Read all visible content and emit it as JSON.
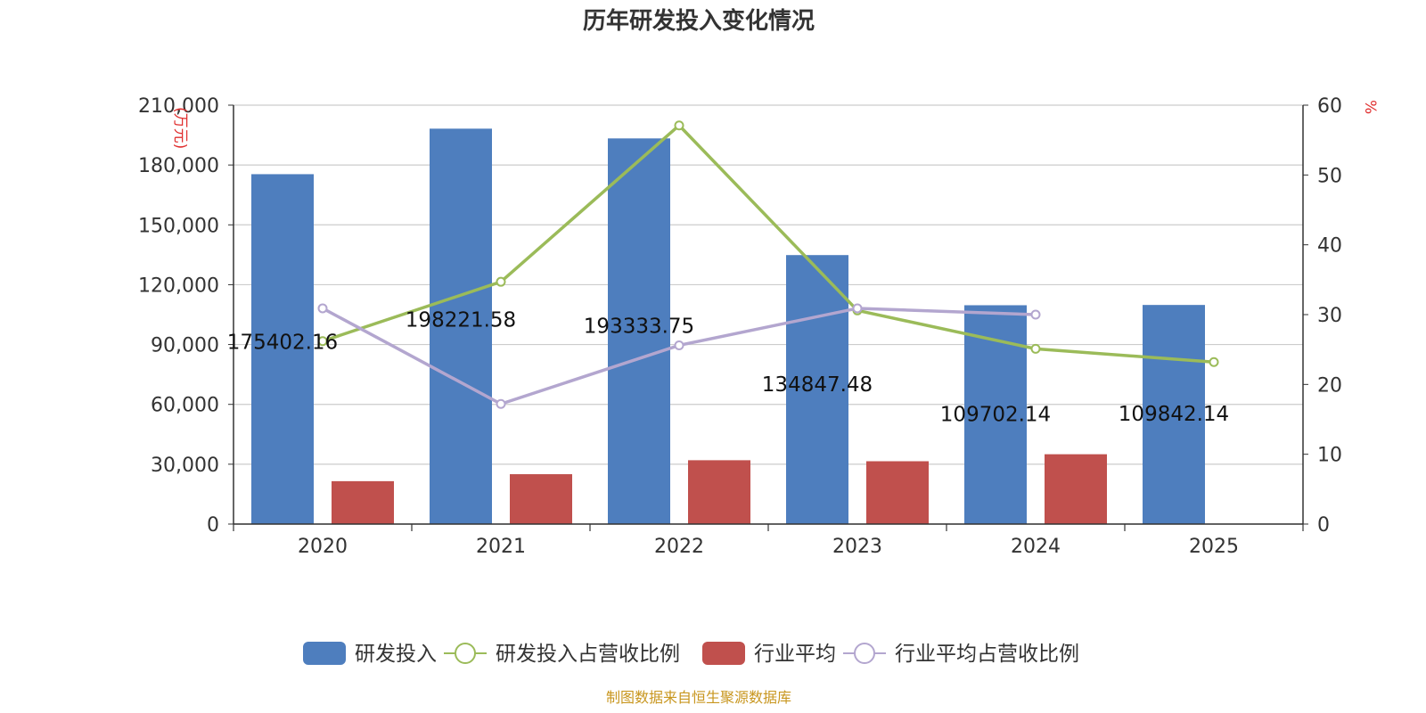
{
  "chart_data": {
    "type": "bar",
    "title": "历年研发投入变化情况",
    "source": "制图数据来自恒生聚源数据库",
    "left_axis_unit": "(万元)",
    "right_axis_unit": "%",
    "categories": [
      "2020",
      "2021",
      "2022",
      "2023",
      "2024",
      "2025"
    ],
    "left_ylim": [
      0,
      210000
    ],
    "left_ticks": [
      "0",
      "30,000",
      "60,000",
      "90,000",
      "120,000",
      "150,000",
      "180,000",
      "210,000"
    ],
    "left_tick_values": [
      0,
      30000,
      60000,
      90000,
      120000,
      150000,
      180000,
      210000
    ],
    "right_ylim": [
      0,
      60
    ],
    "right_ticks": [
      "0",
      "10",
      "20",
      "30",
      "40",
      "50",
      "60"
    ],
    "right_tick_values": [
      0,
      10,
      20,
      30,
      40,
      50,
      60
    ],
    "grid": true,
    "legend_position": "bottom-center",
    "series": [
      {
        "name": "研发投入",
        "kind": "bar",
        "axis": "left",
        "color": "#4e7ebe",
        "values": [
          175402.16,
          198221.58,
          193333.75,
          134847.48,
          109702.14,
          109842.14
        ],
        "labels": [
          "175402.16",
          "198221.58",
          "193333.75",
          "134847.48",
          "109702.14",
          "109842.14"
        ]
      },
      {
        "name": "研发投入占营收比例",
        "kind": "line",
        "axis": "right",
        "color": "#9bbb59",
        "values": [
          26.2,
          34.7,
          57.1,
          30.6,
          25.1,
          23.2
        ]
      },
      {
        "name": "行业平均",
        "kind": "bar",
        "axis": "left",
        "color": "#c0504d",
        "values": [
          21500,
          25000,
          32000,
          31500,
          35000,
          null
        ]
      },
      {
        "name": "行业平均占营收比例",
        "kind": "line",
        "axis": "right",
        "color": "#b3a6cf",
        "values": [
          30.9,
          17.2,
          25.6,
          30.9,
          30.0,
          null
        ]
      }
    ]
  }
}
